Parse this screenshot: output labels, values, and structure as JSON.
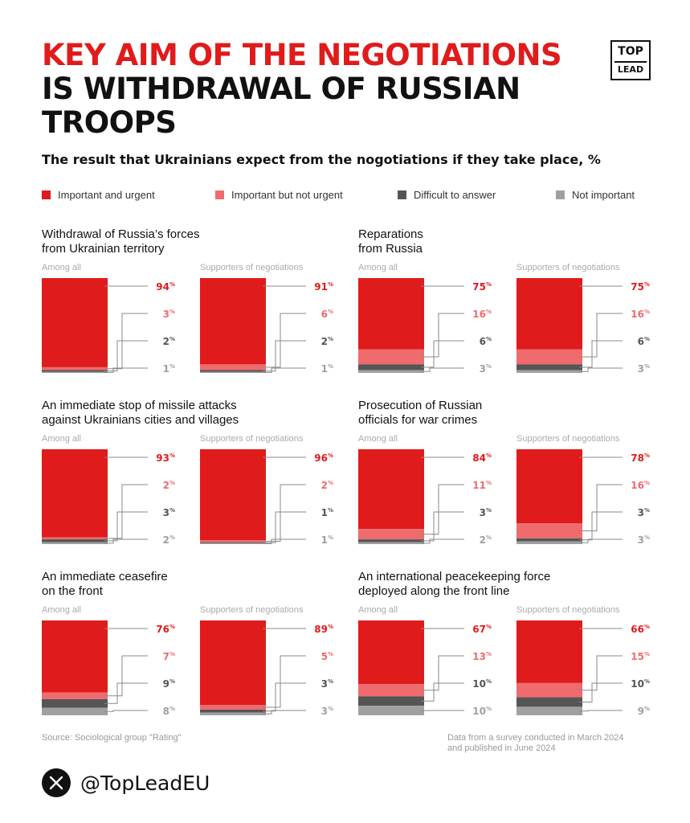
{
  "header": {
    "title_line1": "KEY AIM OF THE NEGOTIATIONS",
    "title_line2": "IS WITHDRAWAL OF RUSSIAN",
    "title_line3": "TROOPS",
    "subtitle": "The result that Ukrainians expect from the nogotiations if they take place, %"
  },
  "logo": {
    "line1": "TOP",
    "line2": "LEAD"
  },
  "legend": [
    {
      "label": "Important and urgent",
      "color": "#e01b1b"
    },
    {
      "label": "Important but not urgent",
      "color": "#ef6b6e"
    },
    {
      "label": "Difficult to answer",
      "color": "#555555"
    },
    {
      "label": "Not important",
      "color": "#a0a0a0"
    }
  ],
  "chart_data": {
    "type": "bar",
    "stacked": true,
    "unit": "%",
    "series_names": [
      "Important and urgent",
      "Important but not urgent",
      "Difficult to answer",
      "Not important"
    ],
    "colors": [
      "#e01b1b",
      "#ef6b6e",
      "#555555",
      "#a0a0a0"
    ],
    "label_colors": [
      "#e01b1b",
      "#ef6b6e",
      "#555555",
      "#a0a0a0"
    ],
    "panels": [
      {
        "title_line1": "Withdrawal of Russia’s forces",
        "title_line2": "from Ukrainian territory",
        "groups": [
          {
            "label": "Among all",
            "values": [
              94,
              3,
              2,
              1
            ]
          },
          {
            "label": "Supporters of negotiations",
            "values": [
              91,
              6,
              2,
              1
            ]
          }
        ]
      },
      {
        "title_line1": "Reparations",
        "title_line2": "from Russia",
        "groups": [
          {
            "label": "Among all",
            "values": [
              75,
              16,
              6,
              3
            ]
          },
          {
            "label": "Supporters of negotiations",
            "values": [
              75,
              16,
              6,
              3
            ]
          }
        ]
      },
      {
        "title_line1": "An immediate stop of missile attacks",
        "title_line2": "against Ukrainians cities and villages",
        "groups": [
          {
            "label": "Among all",
            "values": [
              93,
              2,
              3,
              2
            ]
          },
          {
            "label": "Supporters of negotiations",
            "values": [
              96,
              2,
              1,
              1
            ]
          }
        ]
      },
      {
        "title_line1": "Prosecution of Russian",
        "title_line2": "officials for war crimes",
        "groups": [
          {
            "label": "Among all",
            "values": [
              84,
              11,
              3,
              2
            ]
          },
          {
            "label": "Supporters of negotiations",
            "values": [
              78,
              16,
              3,
              3
            ]
          }
        ]
      },
      {
        "title_line1": "An immediate ceasefire",
        "title_line2": "on the front",
        "groups": [
          {
            "label": "Among all",
            "values": [
              76,
              7,
              9,
              8
            ]
          },
          {
            "label": "Supporters of negotiations",
            "values": [
              89,
              5,
              3,
              3
            ]
          }
        ]
      },
      {
        "title_line1": "An international peacekeeping force",
        "title_line2": "deployed along the front line",
        "groups": [
          {
            "label": "Among all",
            "values": [
              67,
              13,
              10,
              10
            ]
          },
          {
            "label": "Supporters of negotiations",
            "values": [
              66,
              15,
              10,
              9
            ]
          }
        ]
      }
    ]
  },
  "footer": {
    "source": "Source: Sociological group \"Rating\"",
    "note_line1": "Data from a survey conducted in March 2024",
    "note_line2": "and published in June 2024",
    "handle": "@TopLeadEU",
    "x_icon": "X"
  }
}
